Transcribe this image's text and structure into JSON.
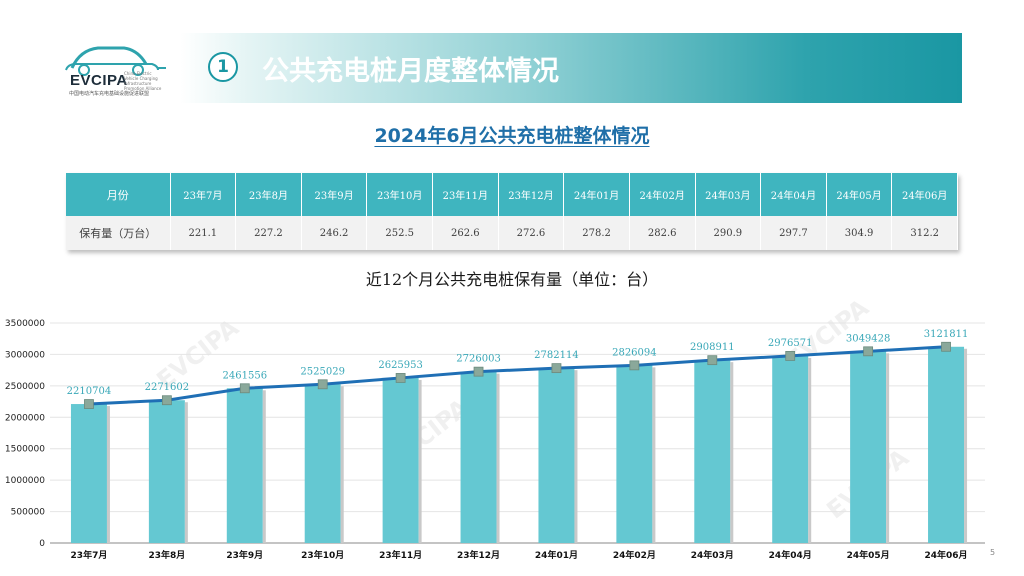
{
  "logo": {
    "name": "EVCIPA",
    "sub": "中国电动汽车充电基础设施促进联盟",
    "en": "China Electric Vehicle Charging Infrastructure Promotion Alliance"
  },
  "header": {
    "section_number": "1",
    "title": "公共充电桩月度整体情况"
  },
  "subtitle": "2024年6月公共充电桩整体情况",
  "table": {
    "header_label": "月份",
    "row_label": "保有量（万台）",
    "months": [
      "23年7月",
      "23年8月",
      "23年9月",
      "23年10月",
      "23年11月",
      "23年12月",
      "24年01月",
      "24年02月",
      "24年03月",
      "24年04月",
      "24年05月",
      "24年06月"
    ],
    "values": [
      "221.1",
      "227.2",
      "246.2",
      "252.5",
      "262.6",
      "272.6",
      "278.2",
      "282.6",
      "290.9",
      "297.7",
      "304.9",
      "312.2"
    ]
  },
  "chart_title": "近12个月公共充电桩保有量（单位：台）",
  "chart_data": {
    "type": "bar",
    "categories": [
      "23年7月",
      "23年8月",
      "23年9月",
      "23年10月",
      "23年11月",
      "23年12月",
      "24年01月",
      "24年02月",
      "24年03月",
      "24年04月",
      "24年05月",
      "24年06月"
    ],
    "values": [
      2210704,
      2271602,
      2461556,
      2525029,
      2625953,
      2726003,
      2782114,
      2826094,
      2908911,
      2976571,
      3049428,
      3121811
    ],
    "ylim": [
      0,
      3500000
    ],
    "yticks": [
      0,
      500000,
      1000000,
      1500000,
      2000000,
      2500000,
      3000000,
      3500000
    ],
    "overlay_line": true,
    "grid": true,
    "colors": {
      "bar": "#64c8d2",
      "line": "#1f6fb5",
      "marker": "#8aa89a"
    }
  },
  "watermark": "EVCIPA",
  "page_number": "5"
}
